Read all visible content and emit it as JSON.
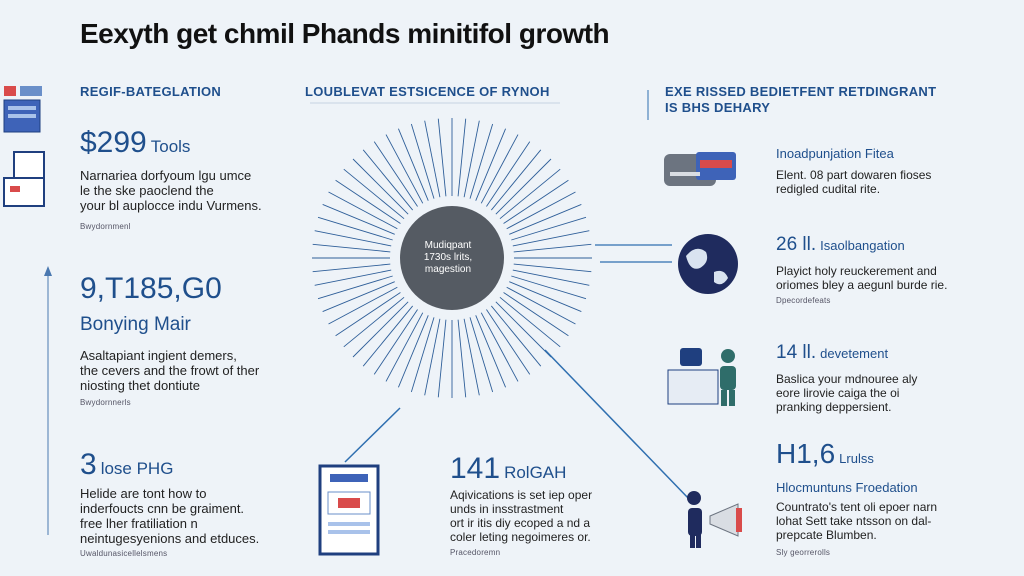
{
  "title": "Eexyth get chmil Phands minitifol growth",
  "columns": {
    "left_head": "REGIF-BATEGLATION",
    "center_head": "LOUBLEVAT ESTSICENCE OF RYNOH",
    "right_head": "EXE RISSED BEDIETFENT RETDINGRANT\nIS BHS DEHARY"
  },
  "left": {
    "stat1": {
      "value": "$299",
      "unit": "Tools",
      "text": "Narnariea dorfyoum lgu umce\nle the ske paoclend the\nyour bl auplocce indu Vurmens.",
      "source": "Bwydornmenl"
    },
    "stat2": {
      "value": "9,T185,G0",
      "subtitle": "Bonying Mair",
      "text": "Asaltapiant ingient demers,\nthe cevers and the frowt of ther\nniosting thet dontiute",
      "source": "Bwydornnerls"
    },
    "stat3": {
      "value": "3",
      "unit": "lose PHG",
      "text": "Helide are tont how to\ninderfoucts cnn be graiment.\nfree lher fratiliation n\nneintugesyenions and etduces.",
      "source": "Uwaldunasicellelsmens"
    }
  },
  "center": {
    "circle_text": "Mudiqpant\n1730s lrits,\nmagestion",
    "stat": {
      "value": "141",
      "unit": "RolGAH",
      "text": "Aqivications is set iep oper\nunds in insstrastment\nort ir itis diy ecoped a nd a\ncoler leting negoimeres or.",
      "source": "Pracedoremn"
    }
  },
  "right": {
    "items": [
      {
        "num": "",
        "head": "Inoadpunjation Fitea",
        "text": "Elent. 08 part dowaren fioses\nredigled cudital rite.",
        "source": "",
        "icon": "credit-card-icon"
      },
      {
        "num": "26 ll.",
        "head": "Isaolbangation",
        "text": "Playict holy reuckerement and\noriomes bley a aegunl burde rie.",
        "source": "Dpecordefeats",
        "icon": "globe-icon"
      },
      {
        "num": "14 ll.",
        "head": "devetement",
        "text": "Baslica your mdnouree aly\neore lirovie caiga the oi\npranking deppersient.",
        "source": "",
        "icon": "person-desk-icon"
      },
      {
        "num": "H1,6",
        "head": "Lrulss",
        "text": "Countrato's tent oli epoer narn\nlohat Sett take ntsson on dal-\nprepcate Blumben.",
        "source": "Sly georrerolls",
        "subhead": "Hlocmuntuns Froedation",
        "icon": "megaphone-person-icon"
      }
    ]
  },
  "colors": {
    "accent": "#1f4f8c",
    "circle": "#555b63",
    "line": "#2f6fb0",
    "background": "#eef3f8"
  }
}
